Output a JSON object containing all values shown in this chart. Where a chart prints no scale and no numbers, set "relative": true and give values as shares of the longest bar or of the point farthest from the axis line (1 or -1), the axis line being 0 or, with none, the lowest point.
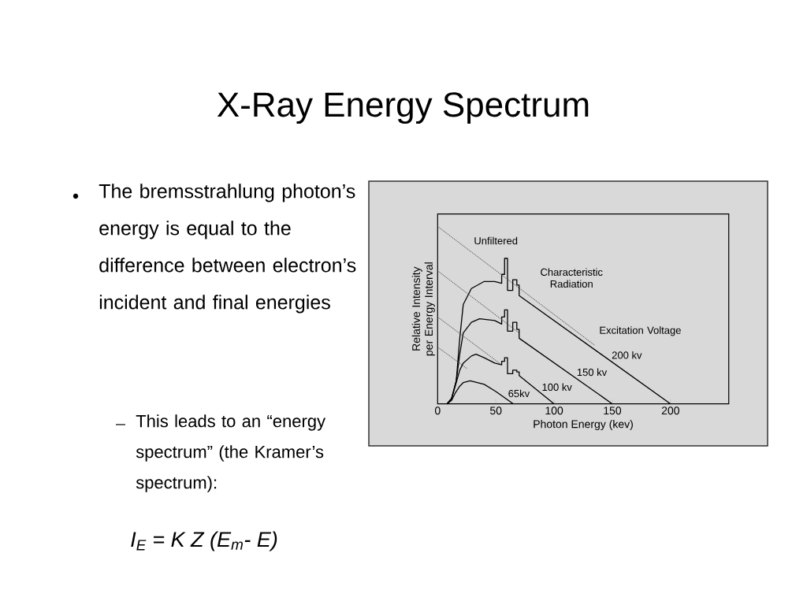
{
  "chart_data": {
    "type": "line",
    "title": "X-Ray Energy Spectrum",
    "xlabel": "Photon Energy (kev)",
    "ylabel": "Relative Intensity per Energy Interval",
    "relative": true,
    "xlim": [
      0,
      250
    ],
    "xticks": [
      0,
      50,
      100,
      150,
      200
    ],
    "marker": "none",
    "series": [
      {
        "name": "200 kv",
        "color": "#000000",
        "line_style": "solid",
        "x": [
          8,
          12,
          16,
          19,
          22,
          29,
          40,
          49,
          55,
          55,
          57.5,
          57.5,
          60,
          60,
          64.5,
          64.5,
          68,
          68,
          70,
          70,
          200
        ],
        "values": [
          0,
          0.03,
          0.13,
          0.37,
          0.56,
          0.65,
          0.69,
          0.69,
          0.68,
          0.73,
          0.73,
          0.82,
          0.82,
          0.64,
          0.64,
          0.7,
          0.7,
          0.67,
          0.67,
          0.61,
          0
        ]
      },
      {
        "name": "150 kv",
        "color": "#000000",
        "line_style": "solid",
        "x": [
          8,
          12,
          16,
          19,
          22,
          29,
          36,
          49,
          55,
          55,
          57.5,
          57.5,
          60,
          60,
          64.5,
          64.5,
          68,
          68,
          70,
          70,
          150
        ],
        "values": [
          0,
          0.03,
          0.13,
          0.28,
          0.4,
          0.46,
          0.48,
          0.47,
          0.45,
          0.49,
          0.49,
          0.53,
          0.53,
          0.41,
          0.41,
          0.46,
          0.46,
          0.42,
          0.42,
          0.37,
          0
        ]
      },
      {
        "name": "100 kv",
        "color": "#000000",
        "line_style": "solid",
        "x": [
          8,
          12,
          16,
          19,
          22,
          29,
          33,
          40,
          49,
          55,
          55,
          57.5,
          57.5,
          60,
          60,
          64.5,
          64.5,
          68,
          68,
          70,
          70,
          100
        ],
        "values": [
          0,
          0.03,
          0.12,
          0.19,
          0.23,
          0.27,
          0.28,
          0.26,
          0.23,
          0.22,
          0.24,
          0.24,
          0.26,
          0.26,
          0.17,
          0.17,
          0.19,
          0.19,
          0.18,
          0.18,
          0.16,
          0
        ]
      },
      {
        "name": "65kv",
        "color": "#000000",
        "line_style": "solid",
        "x": [
          8,
          12,
          15,
          19,
          22,
          28,
          40,
          50,
          65
        ],
        "values": [
          0,
          0.02,
          0.06,
          0.1,
          0.12,
          0.13,
          0.11,
          0.07,
          0
        ]
      },
      {
        "color": "#444444",
        "line_style": "dotted",
        "x": [
          0,
          135
        ],
        "values": [
          1,
          0.33
        ]
      },
      {
        "color": "#444444",
        "line_style": "dotted",
        "x": [
          0,
          70
        ],
        "values": [
          0.75,
          0.4
        ]
      },
      {
        "color": "#444444",
        "line_style": "dotted",
        "x": [
          0,
          55
        ],
        "values": [
          0.49,
          0.22
        ]
      },
      {
        "color": "#444444",
        "line_style": "dotted",
        "x": [
          0,
          25
        ],
        "values": [
          0.32,
          0.2
        ]
      }
    ],
    "annotations": [
      "The bremsstrahlung photon’s energy is equal to the difference between electron’s incident and final energies",
      "This leads to an “energy spectrum” (the Kramer’s spectrum):",
      "I$_{E}$ = K Z (E$_{m}$- E)",
      "Unfiltered",
      "Characteristic Radiation",
      "Excitation Voltage"
    ]
  }
}
